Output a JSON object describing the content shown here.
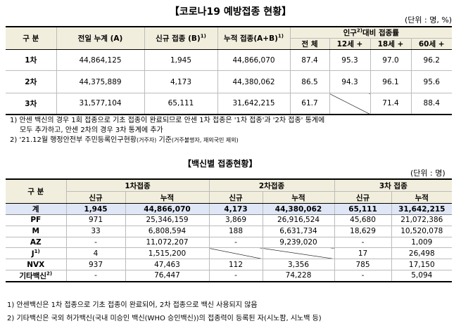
{
  "title1": "【코로나19 예방접종 현황】",
  "unit1": "(단위 : 명, %)",
  "table1": {
    "headers": {
      "gubun": "구 분",
      "prev": "전일 누계 (A)",
      "new": "신규 접종 (B)",
      "new_sup": "1)",
      "cum": "누적 접종(A+B)",
      "cum_sup": "1)",
      "ratio_group": "인구",
      "ratio_sup": "2)",
      "ratio_group2": "대비 접종률",
      "all": "전 체",
      "age12": "12세 +",
      "age18": "18세 +",
      "age60": "60세 +"
    },
    "rows": [
      {
        "label": "1차",
        "prev": "44,864,125",
        "new": "1,945",
        "cum": "44,866,070",
        "all": "87.4",
        "age12": "95.3",
        "age18": "97.0",
        "age60": "96.2"
      },
      {
        "label": "2차",
        "prev": "44,375,889",
        "new": "4,173",
        "cum": "44,380,062",
        "all": "86.5",
        "age12": "94.3",
        "age18": "96.1",
        "age60": "95.6"
      },
      {
        "label": "3차",
        "prev": "31,577,104",
        "new": "65,111",
        "cum": "31,642,215",
        "all": "61.7",
        "age12": "",
        "age18": "71.4",
        "age60": "88.4"
      }
    ]
  },
  "notes1": {
    "n1a": "1) 안센 백신의 경우 1회 접종으로 기초 접종이 완료되므로 안센 1차 접종은 '1차 접종'과 '2차 접종' 통계에",
    "n1b": "모두 추가하고, 안센 2차의 경우 3차 통계에 추가",
    "n2": "2) '21.12월 행정안전부 주민등록인구현황",
    "n2b": "(거주자)",
    "n2c": " 기준",
    "n2d": "(거주불명자, 재외국민 제외)"
  },
  "title2": "【백신별 접종현황】",
  "unit2": "(단위 : 명)",
  "table2": {
    "headers": {
      "gubun": "구 분",
      "d1": "1차접종",
      "d2": "2차접종",
      "d3": "3차 접종",
      "new": "신규",
      "cum": "누적"
    },
    "rows": [
      {
        "label": "계",
        "d1n": "1,945",
        "d1c": "44,866,070",
        "d2n": "4,173",
        "d2c": "44,380,062",
        "d3n": "65,111",
        "d3c": "31,642,215"
      },
      {
        "label": "PF",
        "d1n": "971",
        "d1c": "25,346,159",
        "d2n": "3,869",
        "d2c": "26,916,524",
        "d3n": "45,680",
        "d3c": "21,072,386"
      },
      {
        "label": "M",
        "d1n": "33",
        "d1c": "6,808,594",
        "d2n": "188",
        "d2c": "6,631,734",
        "d3n": "18,629",
        "d3c": "10,520,078"
      },
      {
        "label": "AZ",
        "d1n": "-",
        "d1c": "11,072,207",
        "d2n": "-",
        "d2c": "9,239,020",
        "d3n": "-",
        "d3c": "1,009"
      },
      {
        "label": "J",
        "sup": "1)",
        "d1n": "4",
        "d1c": "1,515,200",
        "d2n": "",
        "d2c": "",
        "d3n": "17",
        "d3c": "26,498"
      },
      {
        "label": "NVX",
        "d1n": "937",
        "d1c": "47,463",
        "d2n": "112",
        "d2c": "3,356",
        "d3n": "785",
        "d3c": "17,150"
      },
      {
        "label": "기타백신",
        "sup": "2)",
        "d1n": "-",
        "d1c": "76,447",
        "d2n": "-",
        "d2c": "74,228",
        "d3n": "-",
        "d3c": "5,094"
      }
    ]
  },
  "notes2": {
    "n1": "1) 안센백신은 1차 접종으로 기초 접종이 완료되어, 2차 접종으로 백신 사용되지 않음",
    "n2": "2) 기타백신은 국외 허가백신(국내 미승인 백신(WHO 승인백신))의 접종력이 등록된 자(시노팜, 시노백 등)"
  }
}
